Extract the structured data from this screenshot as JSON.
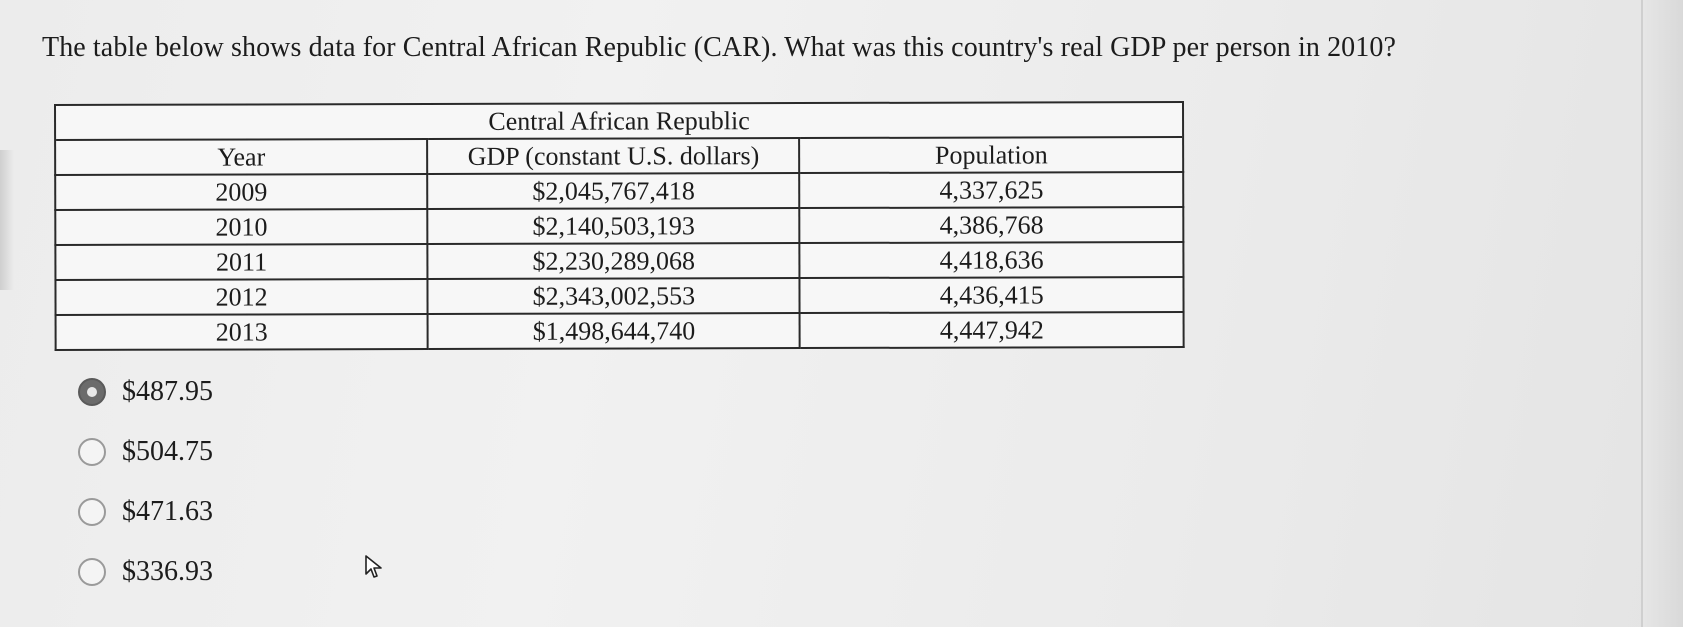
{
  "question": "The table below shows data for Central African Republic (CAR). What was this country's real GDP per person in 2010?",
  "table": {
    "caption": "Central African Republic",
    "headers": [
      "Year",
      "GDP (constant U.S. dollars)",
      "Population"
    ],
    "rows": [
      [
        "2009",
        "$2,045,767,418",
        "4,337,625"
      ],
      [
        "2010",
        "$2,140,503,193",
        "4,386,768"
      ],
      [
        "2011",
        "$2,230,289,068",
        "4,418,636"
      ],
      [
        "2012",
        "$2,343,002,553",
        "4,436,415"
      ],
      [
        "2013",
        "$1,498,644,740",
        "4,447,942"
      ]
    ]
  },
  "options": [
    {
      "label": "$487.95",
      "selected": true
    },
    {
      "label": "$504.75",
      "selected": false
    },
    {
      "label": "$471.63",
      "selected": false
    },
    {
      "label": "$336.93",
      "selected": false
    }
  ],
  "icons": {
    "cursor": "mouse-pointer-icon"
  }
}
